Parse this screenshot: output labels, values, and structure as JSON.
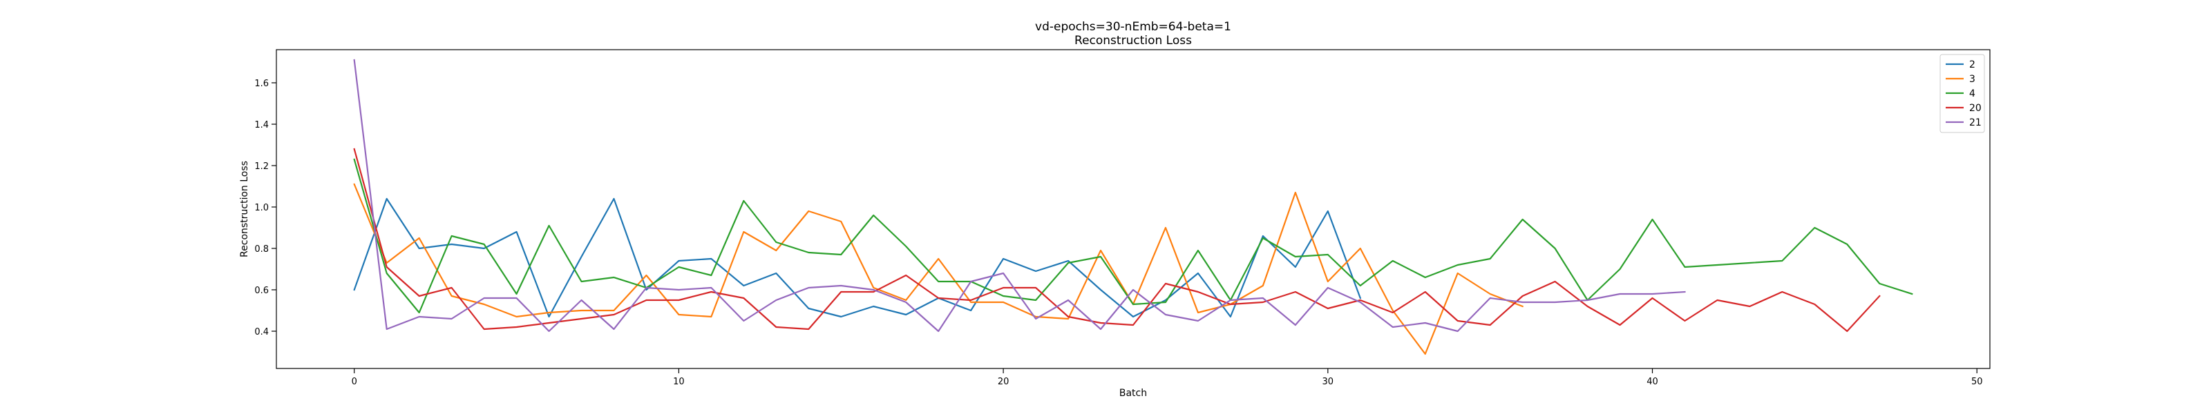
{
  "chart_data": {
    "type": "line",
    "title": "vd-epochs=30-nEmb=64-beta=1",
    "subtitle": "Reconstruction Loss",
    "xlabel": "Batch",
    "ylabel": "Reconstruction Loss",
    "xlim": [
      -2.4,
      50.4
    ],
    "ylim": [
      0.22,
      1.76
    ],
    "xticks": [
      0,
      10,
      20,
      30,
      40,
      50
    ],
    "yticks": [
      0.4,
      0.6,
      0.8,
      1.0,
      1.2,
      1.4,
      1.6
    ],
    "ytick_labels": [
      "0.4",
      "0.6",
      "0.8",
      "1.0",
      "1.2",
      "1.4",
      "1.6"
    ],
    "grid": false,
    "legend_position": "top-right",
    "series": [
      {
        "name": "2",
        "color": "#1f77b4",
        "values": [
          0.6,
          1.04,
          0.8,
          0.82,
          0.8,
          0.88,
          0.47,
          0.76,
          1.04,
          0.6,
          0.74,
          0.75,
          0.62,
          0.68,
          0.51,
          0.47,
          0.52,
          0.48,
          0.56,
          0.5,
          0.75,
          0.69,
          0.74,
          0.6,
          0.47,
          0.55,
          0.68,
          0.47,
          0.86,
          0.71,
          0.98,
          0.56
        ]
      },
      {
        "name": "3",
        "color": "#ff7f0e",
        "values": [
          1.11,
          0.73,
          0.85,
          0.57,
          0.53,
          0.47,
          0.49,
          0.5,
          0.5,
          0.67,
          0.48,
          0.47,
          0.88,
          0.79,
          0.98,
          0.93,
          0.61,
          0.55,
          0.75,
          0.54,
          0.54,
          0.47,
          0.46,
          0.79,
          0.53,
          0.9,
          0.49,
          0.53,
          0.62,
          1.07,
          0.64,
          0.8,
          0.5,
          0.29,
          0.68,
          0.58,
          0.52
        ]
      },
      {
        "name": "4",
        "color": "#2ca02c",
        "values": [
          1.23,
          0.68,
          0.49,
          0.86,
          0.82,
          0.58,
          0.91,
          0.64,
          0.66,
          0.61,
          0.71,
          0.67,
          1.03,
          0.83,
          0.78,
          0.77,
          0.96,
          0.81,
          0.64,
          0.64,
          0.57,
          0.55,
          0.73,
          0.76,
          0.53,
          0.54,
          0.79,
          0.55,
          0.85,
          0.76,
          0.77,
          0.62,
          0.74,
          0.66,
          0.72,
          0.75,
          0.94,
          0.8,
          0.55,
          0.7,
          0.94,
          0.71,
          0.72,
          0.73,
          0.74,
          0.9,
          0.82,
          0.63,
          0.58
        ]
      },
      {
        "name": "20",
        "color": "#d62728",
        "values": [
          1.28,
          0.71,
          0.57,
          0.61,
          0.41,
          0.42,
          0.44,
          0.46,
          0.48,
          0.55,
          0.55,
          0.59,
          0.56,
          0.42,
          0.41,
          0.59,
          0.59,
          0.67,
          0.56,
          0.55,
          0.61,
          0.61,
          0.47,
          0.44,
          0.43,
          0.63,
          0.59,
          0.53,
          0.54,
          0.59,
          0.51,
          0.55,
          0.49,
          0.59,
          0.45,
          0.43,
          0.57,
          0.64,
          0.52,
          0.43,
          0.56,
          0.45,
          0.55,
          0.52,
          0.59,
          0.53,
          0.4,
          0.57
        ]
      },
      {
        "name": "21",
        "color": "#9467bd",
        "values": [
          1.71,
          0.41,
          0.47,
          0.46,
          0.56,
          0.56,
          0.4,
          0.55,
          0.41,
          0.61,
          0.6,
          0.61,
          0.45,
          0.55,
          0.61,
          0.62,
          0.6,
          0.54,
          0.4,
          0.64,
          0.68,
          0.46,
          0.55,
          0.41,
          0.6,
          0.48,
          0.45,
          0.55,
          0.56,
          0.43,
          0.61,
          0.54,
          0.42,
          0.44,
          0.4,
          0.56,
          0.54,
          0.54,
          0.55,
          0.58,
          0.58,
          0.59
        ]
      }
    ]
  }
}
